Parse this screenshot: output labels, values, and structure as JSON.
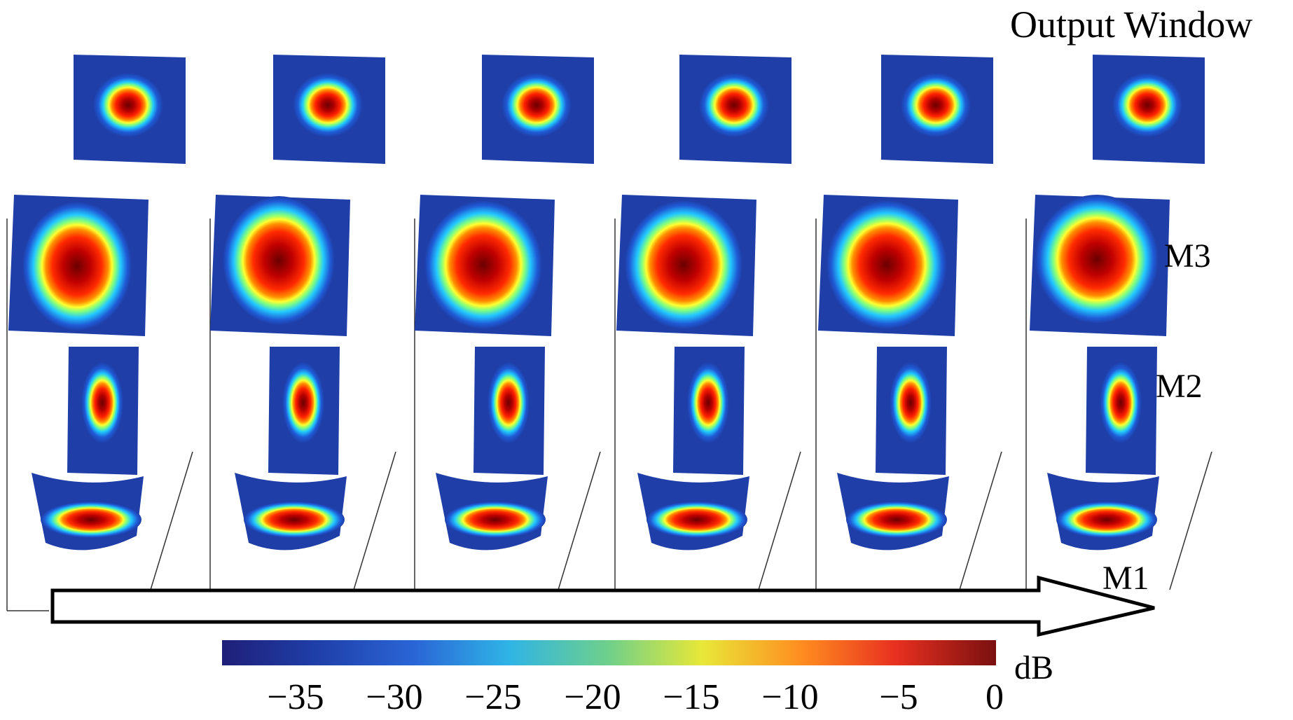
{
  "title": "Output Window",
  "planes": [
    {
      "label": "M3"
    },
    {
      "label": "M2"
    },
    {
      "label": "M1"
    }
  ],
  "colorbar": {
    "unit": "dB",
    "ticks": [
      "−35",
      "−30",
      "−25",
      "−20",
      "−15",
      "−10",
      "−5",
      "0"
    ],
    "tick_values": [
      -35,
      -30,
      -25,
      -20,
      -15,
      -10,
      -5,
      0
    ],
    "range": [
      -40,
      0
    ],
    "colormap": "jet",
    "colors": [
      "#00007f",
      "#0000ff",
      "#00ffff",
      "#ffff00",
      "#ff0000",
      "#7f0000"
    ]
  },
  "stages_count": 6
}
